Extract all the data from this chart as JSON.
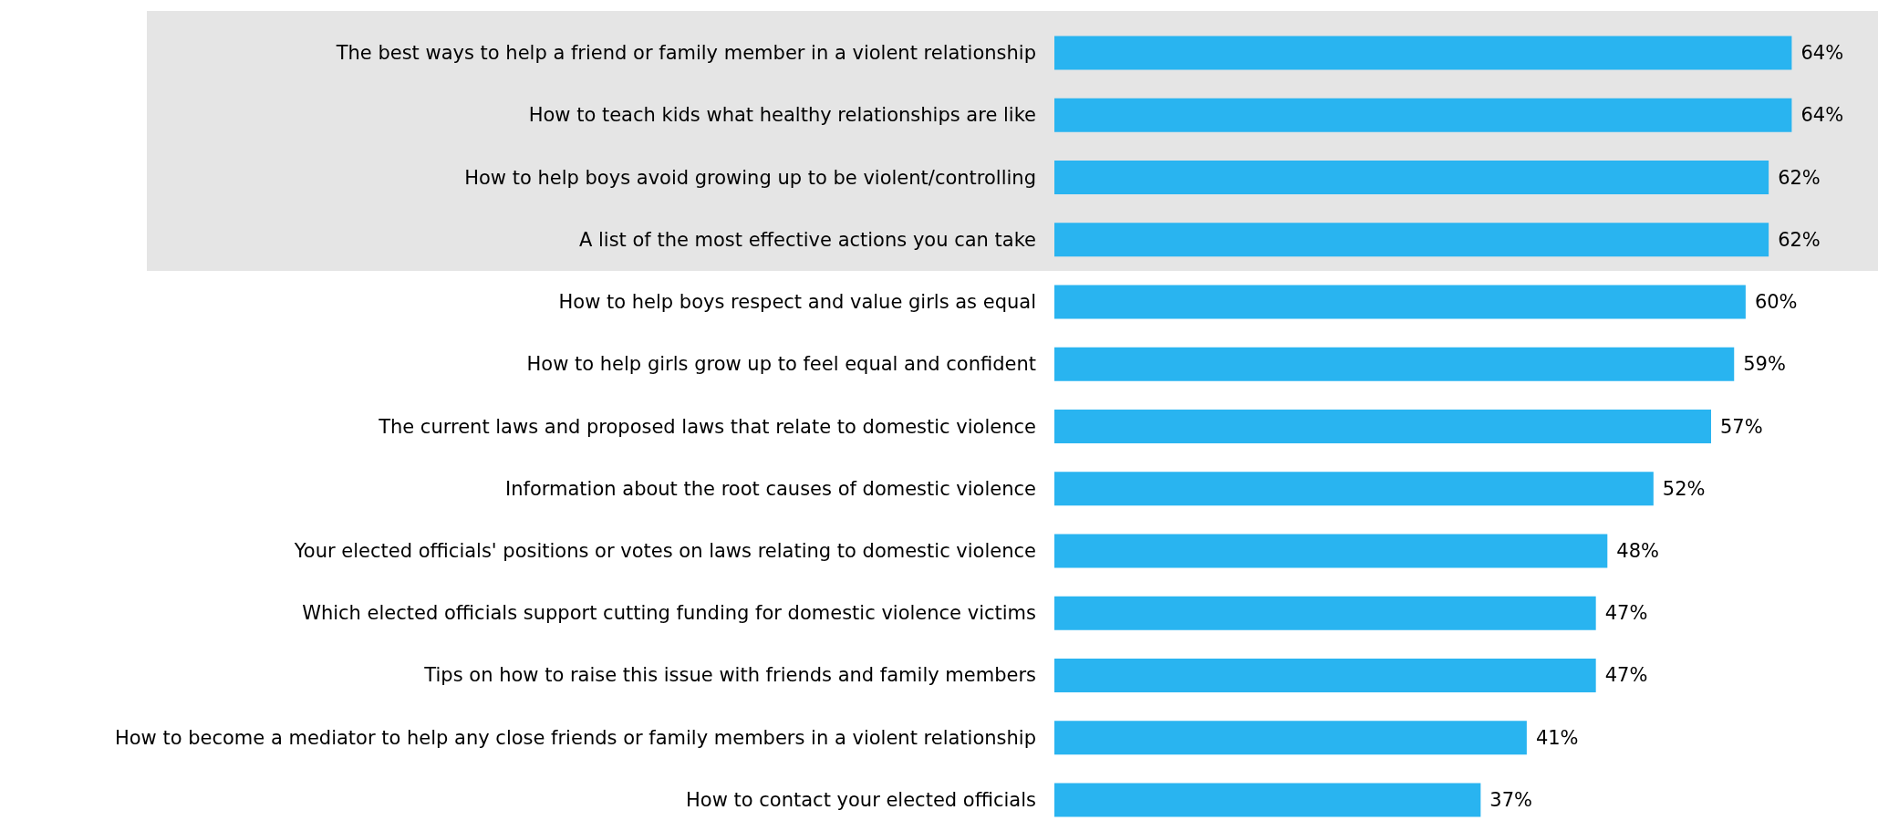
{
  "chart_data": {
    "type": "bar",
    "orientation": "horizontal",
    "categories": [
      "The best ways to help a friend or family member in a violent relationship",
      "How to teach kids what healthy relationships are like",
      "How to help boys avoid growing up to be violent/controlling",
      "A list of the most effective actions you can take",
      "How to help boys respect and value girls as equal",
      "How to help girls grow up to feel equal and confident",
      "The current laws and proposed laws that relate to domestic violence",
      "Information about the root causes of domestic violence",
      "Your elected officials' positions or votes on laws relating to domestic violence",
      "Which elected officials support cutting funding for domestic violence victims",
      "Tips on how to raise this issue with friends and family members",
      "How to become a mediator to help any close friends or family members in a violent relationship",
      "How to contact your elected officials"
    ],
    "values": [
      64,
      64,
      62,
      62,
      60,
      59,
      57,
      52,
      48,
      47,
      47,
      41,
      37
    ],
    "value_labels": [
      "64%",
      "64%",
      "62%",
      "62%",
      "60%",
      "59%",
      "57%",
      "52%",
      "48%",
      "47%",
      "47%",
      "41%",
      "37%"
    ],
    "color": "#29b4f0",
    "bands": [
      {
        "axis": "y",
        "from": "The best ways to help a friend or family member in a violent relationship",
        "to": "A list of the most effective actions you can take",
        "color": "#e5e5e5"
      }
    ]
  }
}
